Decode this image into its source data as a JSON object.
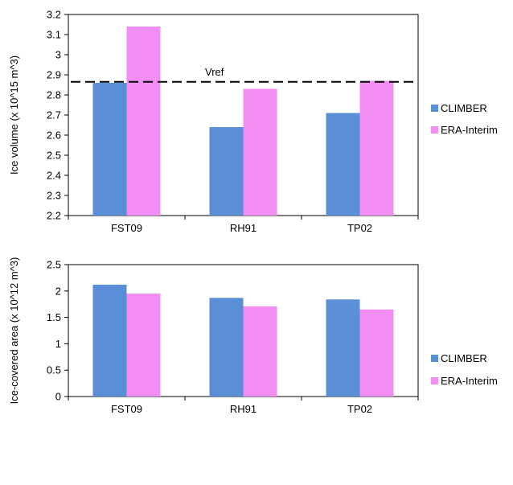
{
  "colors": {
    "climber": "#5b8fd8",
    "era": "#f28ef2",
    "axis": "#000000",
    "vref": "#000000"
  },
  "chart_data": [
    {
      "type": "bar",
      "categories": [
        "FST09",
        "RH91",
        "TP02"
      ],
      "series": [
        {
          "name": "CLIMBER",
          "values": [
            2.86,
            2.64,
            2.71
          ]
        },
        {
          "name": "ERA-Interim",
          "values": [
            3.14,
            2.83,
            2.87
          ]
        }
      ],
      "title": "",
      "xlabel": "",
      "ylabel": "Ice volume (x 10^15 m^3)",
      "ylim": [
        2.2,
        3.2
      ],
      "yticks": [
        "2.2",
        "2.3",
        "2.4",
        "2.5",
        "2.6",
        "2.7",
        "2.8",
        "2.9",
        "3",
        "3.1",
        "3.2"
      ],
      "reference_line": {
        "label": "Vref",
        "value": 2.865,
        "style": "dashed"
      },
      "legend": "right",
      "grid": false
    },
    {
      "type": "bar",
      "categories": [
        "FST09",
        "RH91",
        "TP02"
      ],
      "series": [
        {
          "name": "CLIMBER",
          "values": [
            2.12,
            1.87,
            1.84
          ]
        },
        {
          "name": "ERA-Interim",
          "values": [
            1.95,
            1.71,
            1.65
          ]
        }
      ],
      "title": "",
      "xlabel": "",
      "ylabel": "Ice-covered area (x 10^12 m^3)",
      "ylim": [
        0,
        2.5
      ],
      "yticks": [
        "0",
        "0.5",
        "1",
        "1.5",
        "2",
        "2.5"
      ],
      "legend": "right",
      "grid": false
    }
  ]
}
